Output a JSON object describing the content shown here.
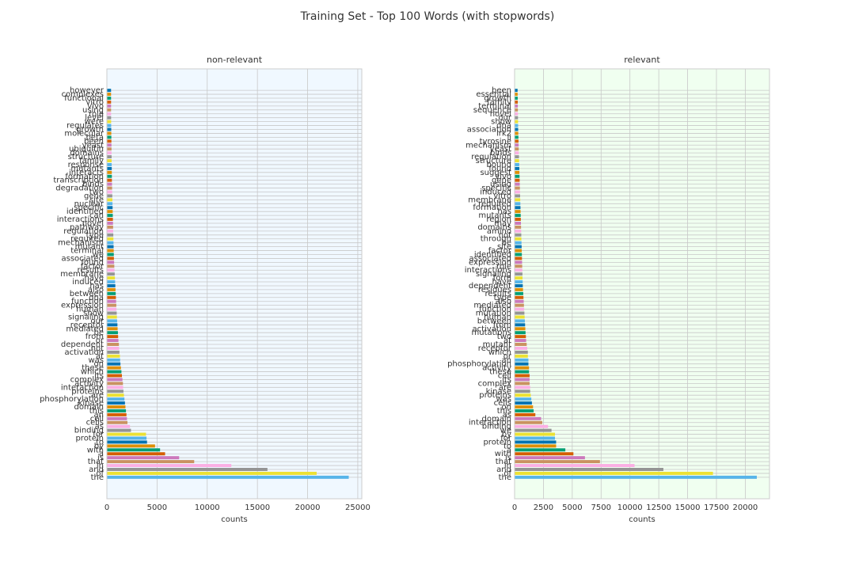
{
  "title": "Training Set - Top 100 Words (with stopwords)",
  "chart_data": [
    {
      "type": "barh",
      "title": "non-relevant",
      "xlabel": "counts",
      "background": "#f0f8ff",
      "grid": true,
      "colors": [
        "#56b4e9",
        "#ece133",
        "#949494",
        "#fbafe4",
        "#ca9161",
        "#cc78bc",
        "#d55e00",
        "#029e73",
        "#de8f05",
        "#0173b2"
      ],
      "xlim": [
        0,
        25400
      ],
      "xticks": [
        0,
        5000,
        10000,
        15000,
        20000,
        25000
      ],
      "categories": [
        "the",
        "of",
        "and",
        "in",
        "that",
        "is",
        "a",
        "with",
        "by",
        "to",
        "protein",
        "for",
        "binding",
        "as",
        "cells",
        "cell",
        "an",
        "this",
        "domain",
        "kinase",
        "phosphorylation",
        "are",
        "proteins",
        "interaction",
        "activity",
        "complex",
        "its",
        "which",
        "these",
        "on",
        "was",
        "at",
        "activation",
        "not",
        "dependent",
        "or",
        "from",
        "be",
        "mediated",
        "receptor",
        "our",
        "signaling",
        "show",
        "human",
        "expression",
        "function",
        "dna",
        "between",
        "also",
        "has",
        "induced",
        "have",
        "membrane",
        "results",
        "factor",
        "found",
        "associated",
        "we",
        "terminal",
        "mutant",
        "mechanism",
        "required",
        "type",
        "regulation",
        "pathway",
        "novel",
        "interactions",
        "can",
        "identified",
        "specific",
        "nuclear",
        "site",
        "gene",
        "two",
        "degradation",
        "binds",
        "transcription",
        "formation",
        "interacts",
        "mutants",
        "response",
        "family",
        "structure",
        "domains",
        "ubiquitin",
        "yeast",
        "been",
        "beta",
        "molecular",
        "growth",
        "regulates",
        "were",
        "level",
        "role",
        "using",
        "vivo",
        "vitro",
        "functional",
        "complexes",
        "however"
      ],
      "values": [
        24100,
        20900,
        16000,
        12400,
        8700,
        7200,
        5800,
        5300,
        4800,
        4000,
        3950,
        3900,
        2400,
        2300,
        2050,
        2000,
        1950,
        1900,
        1850,
        1800,
        1750,
        1700,
        1650,
        1620,
        1600,
        1550,
        1500,
        1450,
        1400,
        1350,
        1320,
        1300,
        1250,
        1220,
        1200,
        1150,
        1120,
        1100,
        1070,
        1050,
        1020,
        1000,
        980,
        960,
        940,
        920,
        900,
        880,
        860,
        840,
        820,
        800,
        780,
        760,
        740,
        720,
        700,
        690,
        680,
        670,
        660,
        650,
        640,
        630,
        620,
        610,
        600,
        590,
        580,
        570,
        560,
        550,
        540,
        530,
        520,
        510,
        500,
        495,
        490,
        485,
        480,
        475,
        470,
        465,
        460,
        455,
        450,
        445,
        440,
        435,
        430,
        425,
        420,
        419,
        418,
        417,
        417,
        416,
        416,
        415
      ]
    },
    {
      "type": "barh",
      "title": "relevant",
      "xlabel": "counts",
      "background": "#f0fff0",
      "grid": true,
      "colors": [
        "#56b4e9",
        "#ece133",
        "#949494",
        "#fbafe4",
        "#ca9161",
        "#cc78bc",
        "#d55e00",
        "#029e73",
        "#de8f05",
        "#0173b2"
      ],
      "xlim": [
        0,
        22100
      ],
      "xticks": [
        0,
        2500,
        5000,
        7500,
        10000,
        12500,
        15000,
        17500,
        20000
      ],
      "categories": [
        "the",
        "of",
        "and",
        "in",
        "that",
        "is",
        "with",
        "a",
        "to",
        "protein",
        "for",
        "by",
        "we",
        "binding",
        "interaction",
        "domain",
        "as",
        "this",
        "on",
        "cells",
        "was",
        "proteins",
        "kinase",
        "are",
        "complex",
        "its",
        "cell",
        "these",
        "activity",
        "phosphorylation",
        "an",
        "or",
        "which",
        "receptor",
        "mutant",
        "at",
        "two",
        "mutations",
        "activation",
        "from",
        "between",
        "human",
        "mutation",
        "function",
        "mediated",
        "also",
        "type",
        "results",
        "residues",
        "dependent",
        "have",
        "form",
        "signaling",
        "interactions",
        "role",
        "expression",
        "associated",
        "identified",
        "factor",
        "site",
        "be",
        "through",
        "not",
        "amino",
        "domains",
        "may",
        "region",
        "mutants",
        "has",
        "formation",
        "required",
        "membrane",
        "vitro",
        "induced",
        "specific",
        "using",
        "gene",
        "vivo",
        "suggest",
        "found",
        "bound",
        "structure",
        "regulation",
        "binds",
        "yeast",
        "mechanism",
        "tyrosine",
        "ii",
        "irk2",
        "association",
        "dna",
        "show",
        "our",
        "novel",
        "sequence",
        "terminal",
        "family",
        "growth",
        "essential",
        "been"
      ],
      "values": [
        21000,
        17200,
        12900,
        10400,
        7400,
        6100,
        5100,
        4400,
        3600,
        3600,
        3500,
        3500,
        3200,
        2900,
        2400,
        2300,
        1800,
        1650,
        1600,
        1500,
        1450,
        1400,
        1350,
        1350,
        1300,
        1300,
        1300,
        1250,
        1250,
        1200,
        1200,
        1150,
        1150,
        1100,
        1050,
        1000,
        980,
        950,
        930,
        910,
        890,
        870,
        850,
        830,
        810,
        790,
        770,
        750,
        730,
        710,
        700,
        690,
        680,
        670,
        660,
        650,
        640,
        630,
        620,
        610,
        600,
        590,
        580,
        570,
        560,
        550,
        540,
        530,
        520,
        510,
        500,
        490,
        480,
        470,
        460,
        450,
        440,
        430,
        420,
        410,
        400,
        390,
        380,
        370,
        360,
        350,
        340,
        330,
        320,
        310,
        305,
        300,
        295,
        290,
        285,
        280,
        275,
        270,
        265,
        260
      ]
    }
  ]
}
